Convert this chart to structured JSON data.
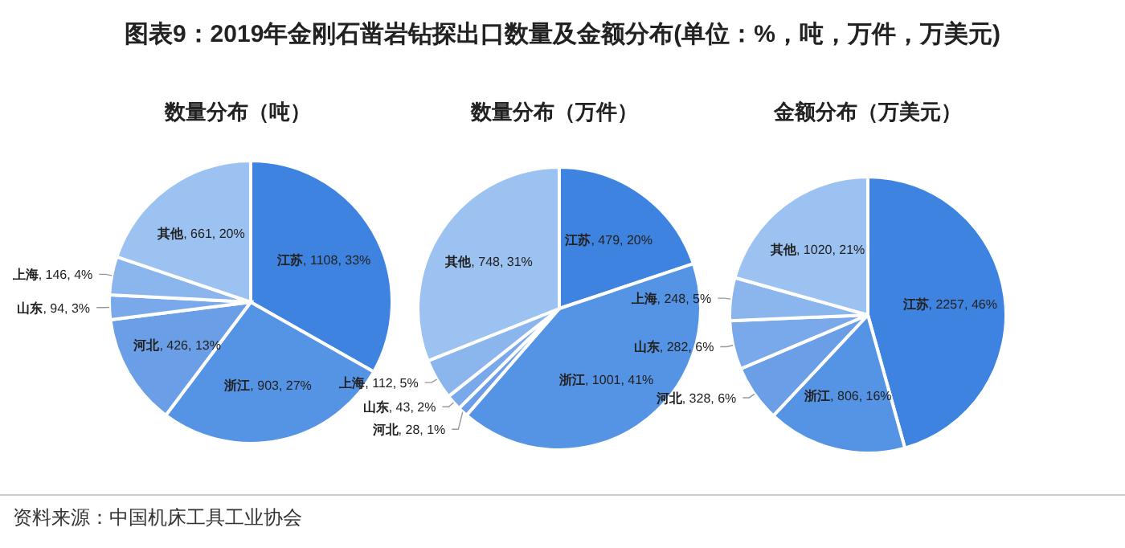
{
  "chart_data": [
    {
      "type": "pie",
      "title": "数量分布（吨）",
      "annotations": [
        "图表9：2019年金刚石凿岩钻探出口数量及金额分布(单位：%，吨，万件，万美元)",
        "资料来源：中国机床工具工业协会"
      ],
      "categories": [
        "江苏",
        "浙江",
        "河北",
        "山东",
        "上海",
        "其他"
      ],
      "values": [
        1108,
        903,
        426,
        94,
        146,
        661
      ],
      "value_labels": [
        ", 1108, 33%",
        ", 903, 27%",
        ", 426, 13%",
        ", 94, 3%",
        ", 146, 4%",
        ", 661, 20%"
      ],
      "colors": [
        "#3f83e0",
        "#5593e4",
        "#6a9fe7",
        "#79a9ea",
        "#8ab5ed",
        "#9cc2f2"
      ]
    },
    {
      "type": "pie",
      "title": "数量分布（万件）",
      "categories": [
        "江苏",
        "浙江",
        "河北",
        "山东",
        "上海",
        "其他"
      ],
      "values": [
        479,
        1001,
        28,
        43,
        112,
        748
      ],
      "value_labels": [
        ", 479, 20%",
        ", 1001, 41%",
        ", 28, 1%",
        ", 43, 2%",
        ", 112, 5%",
        ", 748, 31%"
      ],
      "colors": [
        "#3f83e0",
        "#5593e4",
        "#6a9fe7",
        "#79a9ea",
        "#8ab5ed",
        "#9cc2f2"
      ]
    },
    {
      "type": "pie",
      "title": "金额分布（万美元）",
      "categories": [
        "江苏",
        "浙江",
        "河北",
        "山东",
        "上海",
        "其他"
      ],
      "values": [
        2257,
        806,
        328,
        282,
        248,
        1020
      ],
      "value_labels": [
        ", 2257, 46%",
        ", 806, 16%",
        ", 328, 6%",
        ", 282, 6%",
        ", 248, 5%",
        ", 1020, 21%"
      ],
      "colors": [
        "#3f83e0",
        "#5593e4",
        "#6a9fe7",
        "#79a9ea",
        "#8ab5ed",
        "#9cc2f2"
      ]
    }
  ]
}
